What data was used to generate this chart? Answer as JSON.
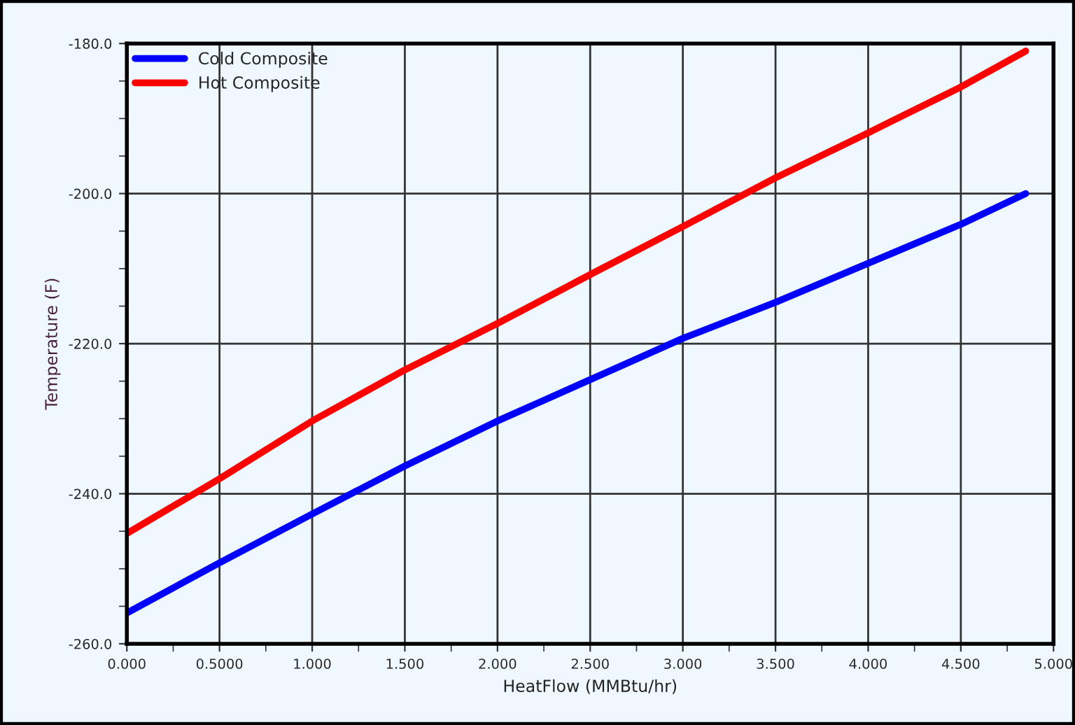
{
  "chart_data": {
    "type": "line",
    "xlabel": "HeatFlow (MMBtu/hr)",
    "ylabel": "Temperature (F)",
    "xlim": [
      0,
      5
    ],
    "ylim": [
      -260,
      -180
    ],
    "xticks": [
      {
        "value": 0,
        "label": "0.000"
      },
      {
        "value": 0.5,
        "label": "0.5000"
      },
      {
        "value": 1,
        "label": "1.000"
      },
      {
        "value": 1.5,
        "label": "1.500"
      },
      {
        "value": 2,
        "label": "2.000"
      },
      {
        "value": 2.5,
        "label": "2.500"
      },
      {
        "value": 3,
        "label": "3.000"
      },
      {
        "value": 3.5,
        "label": "3.500"
      },
      {
        "value": 4,
        "label": "4.000"
      },
      {
        "value": 4.5,
        "label": "4.500"
      },
      {
        "value": 5,
        "label": "5.000"
      }
    ],
    "yticks": [
      {
        "value": -260,
        "label": "-260.0"
      },
      {
        "value": -240,
        "label": "-240.0"
      },
      {
        "value": -220,
        "label": "-220.0"
      },
      {
        "value": -200,
        "label": "-200.0"
      },
      {
        "value": -180,
        "label": "-180.0"
      }
    ],
    "x": [
      0,
      0.5,
      1.0,
      1.5,
      2.0,
      2.5,
      3.0,
      3.5,
      4.0,
      4.5,
      4.85
    ],
    "series": [
      {
        "name": "Cold Composite",
        "color": "#0000ff",
        "values": [
          -255.9,
          -249.2,
          -242.7,
          -236.3,
          -230.3,
          -224.8,
          -219.3,
          -214.5,
          -209.3,
          -204.1,
          -200.0
        ]
      },
      {
        "name": "Hot Composite",
        "color": "#ff0000",
        "values": [
          -245.3,
          -238.0,
          -230.3,
          -223.5,
          -217.3,
          -210.8,
          -204.4,
          -197.9,
          -191.9,
          -185.8,
          -181.0
        ]
      }
    ],
    "grid": true,
    "legend": "top left",
    "line_style": "solid",
    "marker": "none"
  }
}
